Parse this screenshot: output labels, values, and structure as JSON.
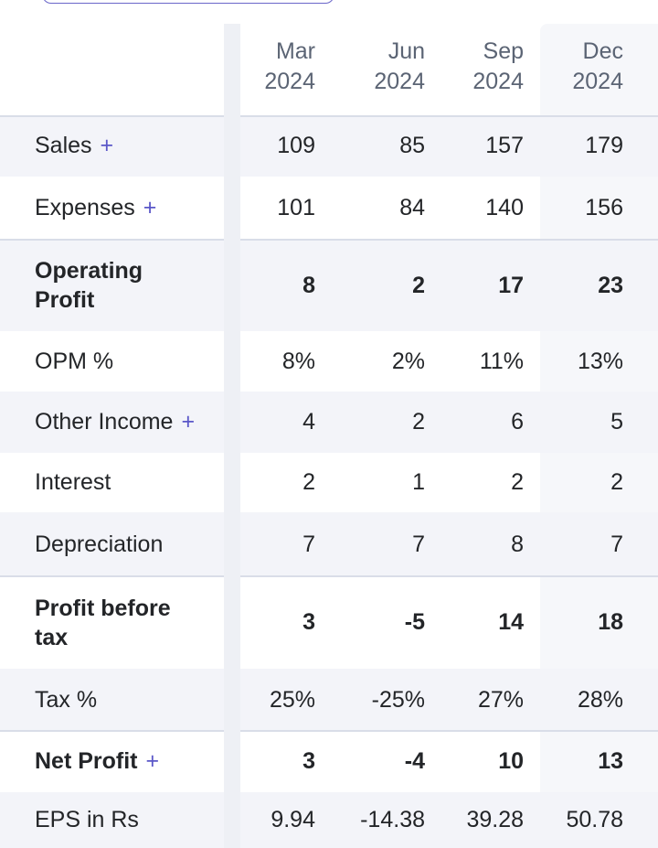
{
  "columns": [
    {
      "month": "Mar",
      "year": "2024"
    },
    {
      "month": "Jun",
      "year": "2024"
    },
    {
      "month": "Sep",
      "year": "2024"
    },
    {
      "month": "Dec",
      "year": "2024"
    }
  ],
  "expand_symbol": "+",
  "rows": [
    {
      "label": "Sales",
      "expandable": true,
      "strong": false,
      "values": [
        "109",
        "85",
        "157",
        "179"
      ]
    },
    {
      "label": "Expenses",
      "expandable": true,
      "strong": false,
      "values": [
        "101",
        "84",
        "140",
        "156"
      ]
    },
    {
      "label": "Operating Profit",
      "expandable": false,
      "strong": true,
      "values": [
        "8",
        "2",
        "17",
        "23"
      ]
    },
    {
      "label": "OPM %",
      "expandable": false,
      "strong": false,
      "values": [
        "8%",
        "2%",
        "11%",
        "13%"
      ]
    },
    {
      "label": "Other Income",
      "expandable": true,
      "strong": false,
      "values": [
        "4",
        "2",
        "6",
        "5"
      ]
    },
    {
      "label": "Interest",
      "expandable": false,
      "strong": false,
      "values": [
        "2",
        "1",
        "2",
        "2"
      ]
    },
    {
      "label": "Depreciation",
      "expandable": false,
      "strong": false,
      "values": [
        "7",
        "7",
        "8",
        "7"
      ]
    },
    {
      "label": "Profit before tax",
      "expandable": false,
      "strong": true,
      "values": [
        "3",
        "-5",
        "14",
        "18"
      ]
    },
    {
      "label": "Tax %",
      "expandable": false,
      "strong": false,
      "values": [
        "25%",
        "-25%",
        "27%",
        "28%"
      ]
    },
    {
      "label": "Net Profit",
      "expandable": true,
      "strong": true,
      "values": [
        "3",
        "-4",
        "10",
        "13"
      ]
    },
    {
      "label": "EPS in Rs",
      "expandable": false,
      "strong": false,
      "values": [
        "9.94",
        "-14.38",
        "39.28",
        "50.78"
      ]
    }
  ],
  "colors": {
    "accent": "#5a57c8",
    "row_alt": "#f3f4f9",
    "header_text": "#5b6474"
  }
}
